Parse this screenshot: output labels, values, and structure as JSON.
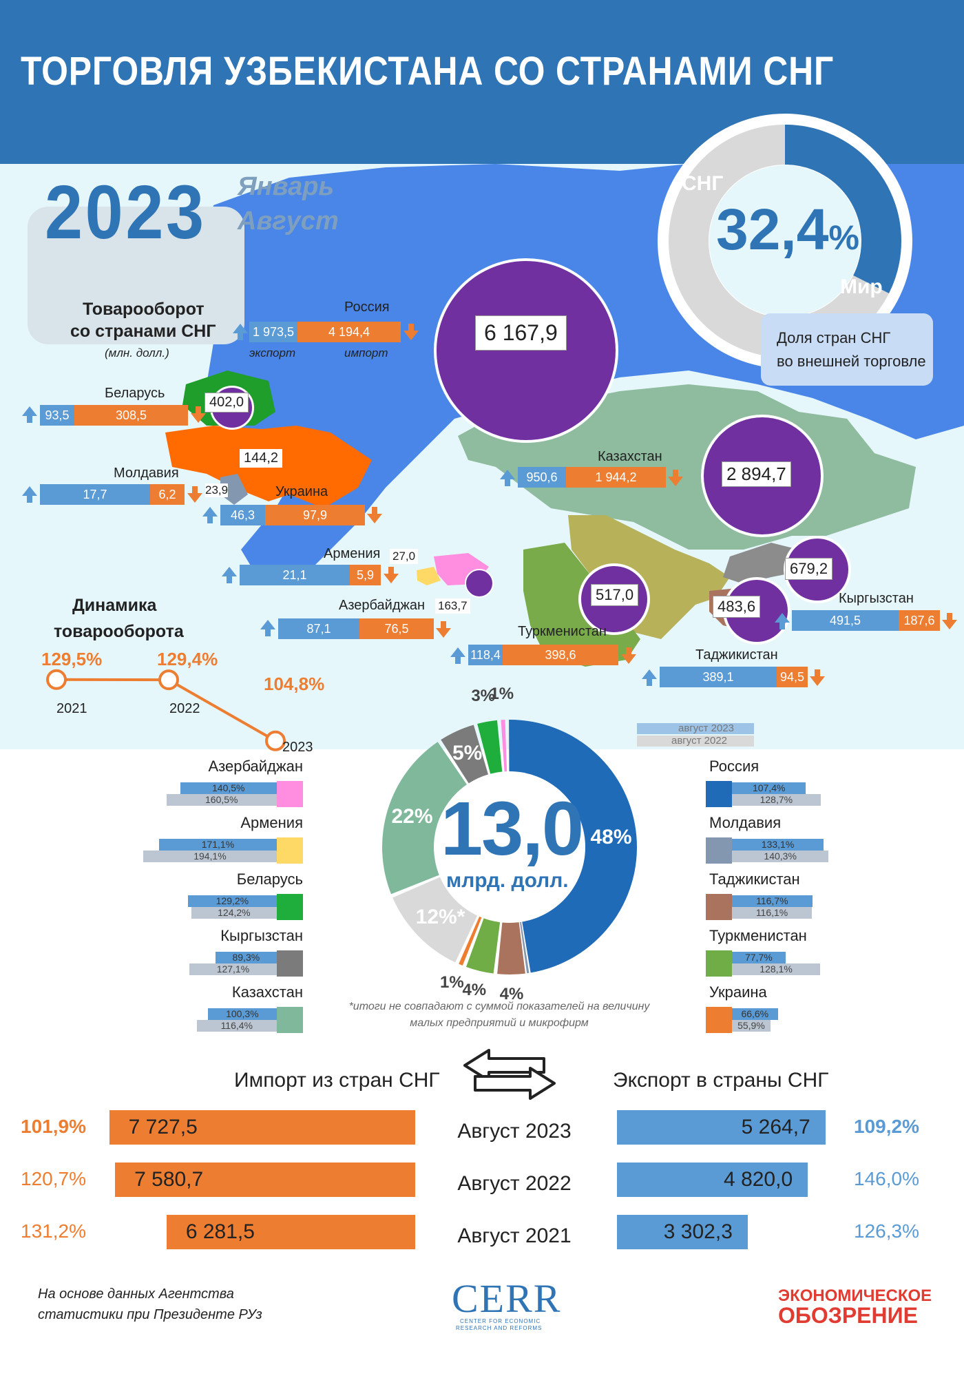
{
  "title": "ТОРГОВЛЯ УЗБЕКИСТАНА СО СТРАНАМИ СНГ",
  "year": "2023",
  "period_line1": "Январь",
  "period_line2": "Август",
  "share": {
    "label_cis": "СНГ",
    "label_world": "Мир",
    "value": "32,4",
    "pct_sign": "%",
    "caption_line1": "Доля стран СНГ",
    "caption_line2": "во внешней торговле",
    "fraction": 0.324,
    "color_cis": "#2f74b5",
    "color_world": "#d9d9d9"
  },
  "turnover_box": {
    "line1": "Товарооборот",
    "line2": "со странами СНГ",
    "unit": "(млн. долл.)"
  },
  "russia": {
    "name": "Россия",
    "export": "1 973,5",
    "import": "4 194,4",
    "total": "6 167,9",
    "export_label": "экспорт",
    "import_label": "импорт"
  },
  "countries": {
    "belarus": {
      "name": "Беларусь",
      "export": "93,5",
      "import": "308,5",
      "total": "402,0"
    },
    "moldova": {
      "name": "Молдавия",
      "export": "17,7",
      "import": "6,2",
      "total": "23,9"
    },
    "ukraine": {
      "name": "Украина",
      "export": "46,3",
      "import": "97,9",
      "total": "144,2"
    },
    "armenia": {
      "name": "Армения",
      "export": "21,1",
      "import": "5,9",
      "total": "27,0"
    },
    "azerbaijan": {
      "name": "Азербайджан",
      "export": "87,1",
      "import": "76,5",
      "total": "163,7"
    },
    "kazakhstan": {
      "name": "Казахстан",
      "export": "950,6",
      "import": "1 944,2",
      "total": "2 894,7"
    },
    "turkmenistan": {
      "name": "Туркменистан",
      "export": "118,4",
      "import": "398,6",
      "total": "517,0"
    },
    "kyrgyzstan": {
      "name": "Кыргызстан",
      "export": "491,5",
      "import": "187,6",
      "total": "679,2"
    },
    "tajikistan": {
      "name": "Таджикистан",
      "export": "389,1",
      "import": "94,5",
      "total": "483,6"
    }
  },
  "dynamics": {
    "title_line1": "Динамика",
    "title_line2": "товарооборота",
    "points": [
      {
        "year": "2021",
        "value": "129,5%",
        "v": 129.5
      },
      {
        "year": "2022",
        "value": "129,4%",
        "v": 129.4
      },
      {
        "year": "2023",
        "value": "104,8%",
        "v": 104.8
      }
    ]
  },
  "chart_data": [
    {
      "type": "pie",
      "title": "13,0",
      "subtitle": "млрд. долл.",
      "labels": [
        "Россия",
        "Молдавия",
        "Таджикистан",
        "Туркменистан",
        "Украина",
        "",
        "Казахстан",
        "Кыргызстан",
        "Беларусь",
        "Азербайджан"
      ],
      "values": [
        48,
        0.2,
        4,
        4,
        1,
        12,
        22,
        5,
        3,
        1
      ],
      "value_labels": [
        "48%",
        "",
        "4%",
        "4%",
        "1%",
        "12%*",
        "22%",
        "5%",
        "3%",
        "1%"
      ],
      "colors": [
        "#1f6bb8",
        "#8497b0",
        "#a9735d",
        "#70ad47",
        "#ed7d31",
        "#d9d9d9",
        "#7fb89a",
        "#7b7b7b",
        "#1fae3b",
        "#ff8ee0"
      ],
      "footnote": "*итоги не совпадают с суммой показателей на величину малых предприятий и микрофирм"
    },
    {
      "type": "bar",
      "legend": [
        "август 2023",
        "август 2022"
      ],
      "left": [
        {
          "name": "Азербайджан",
          "v2023": "140,5%",
          "v2022": "160,5%",
          "a": 140.5,
          "b": 160.5,
          "color": "#ff8ee0"
        },
        {
          "name": "Армения",
          "v2023": "171,1%",
          "v2022": "194,1%",
          "a": 171.1,
          "b": 194.1,
          "color": "#ffd966"
        },
        {
          "name": "Беларусь",
          "v2023": "129,2%",
          "v2022": "124,2%",
          "a": 129.2,
          "b": 124.2,
          "color": "#1fae3b"
        },
        {
          "name": "Кыргызстан",
          "v2023": "89,3%",
          "v2022": "127,1%",
          "a": 89.3,
          "b": 127.1,
          "color": "#7b7b7b"
        },
        {
          "name": "Казахстан",
          "v2023": "100,3%",
          "v2022": "116,4%",
          "a": 100.3,
          "b": 116.4,
          "color": "#7fb89a"
        }
      ],
      "right": [
        {
          "name": "Россия",
          "v2023": "107,4%",
          "v2022": "128,7%",
          "a": 107.4,
          "b": 128.7,
          "color": "#1f6bb8"
        },
        {
          "name": "Молдавия",
          "v2023": "133,1%",
          "v2022": "140,3%",
          "a": 133.1,
          "b": 140.3,
          "color": "#8497b0"
        },
        {
          "name": "Таджикистан",
          "v2023": "116,7%",
          "v2022": "116,1%",
          "a": 116.7,
          "b": 116.1,
          "color": "#a9735d"
        },
        {
          "name": "Туркменистан",
          "v2023": "77,7%",
          "v2022": "128,1%",
          "a": 77.7,
          "b": 128.1,
          "color": "#70ad47"
        },
        {
          "name": "Украина",
          "v2023": "66,6%",
          "v2022": "55,9%",
          "a": 66.6,
          "b": 55.9,
          "color": "#ed7d31"
        }
      ]
    },
    {
      "type": "bar",
      "import_title": "Импорт из стран СНГ",
      "export_title": "Экспорт в страны СНГ",
      "rows": [
        {
          "period": "Август 2023",
          "imp_pct": "101,9%",
          "imp": "7 727,5",
          "imp_v": 7727.5,
          "exp": "5 264,7",
          "exp_v": 5264.7,
          "exp_pct": "109,2%"
        },
        {
          "period": "Август 2022",
          "imp_pct": "120,7%",
          "imp": "7 580,7",
          "imp_v": 7580.7,
          "exp": "4 820,0",
          "exp_v": 4820.0,
          "exp_pct": "146,0%"
        },
        {
          "period": "Август 2021",
          "imp_pct": "131,2%",
          "imp": "6 281,5",
          "imp_v": 6281.5,
          "exp": "3 302,3",
          "exp_v": 3302.3,
          "exp_pct": "126,3%"
        }
      ]
    }
  ],
  "footer": {
    "source_line1": "На основе данных Агентства",
    "source_line2": "статистики при Президенте РУз",
    "cerr": "CERR",
    "cerr_sub1": "CENTER FOR ECONOMIC",
    "cerr_sub2": "RESEARCH AND REFORMS",
    "brand_line1": "ЭКОНОМИЧЕСКОЕ",
    "brand_line2": "ОБОЗРЕНИЕ"
  }
}
